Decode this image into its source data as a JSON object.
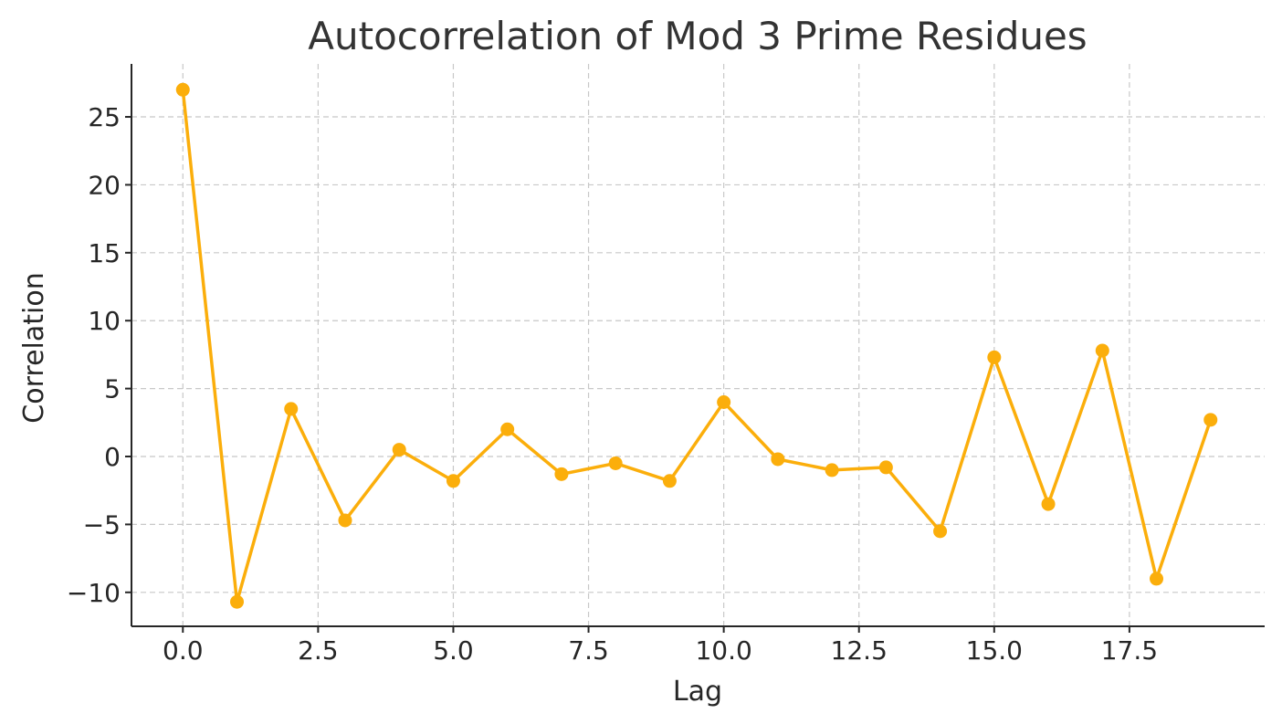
{
  "chart_data": {
    "type": "line",
    "title": "Autocorrelation of Mod 3 Prime Residues",
    "xlabel": "Lag",
    "ylabel": "Correlation",
    "xlim": [
      -0.95,
      20.0
    ],
    "ylim": [
      -12.5,
      28.9
    ],
    "xticks": [
      0.0,
      2.5,
      5.0,
      7.5,
      10.0,
      12.5,
      15.0,
      17.5
    ],
    "xtick_labels": [
      "0.0",
      "2.5",
      "5.0",
      "7.5",
      "10.0",
      "12.5",
      "15.0",
      "17.5"
    ],
    "yticks": [
      -10,
      -5,
      0,
      5,
      10,
      15,
      20,
      25
    ],
    "ytick_labels": [
      "−10",
      "−5",
      "0",
      "5",
      "10",
      "15",
      "20",
      "25"
    ],
    "grid": true,
    "series": [
      {
        "color": "#FBAE0B",
        "marker": "circle",
        "x": [
          0,
          1,
          2,
          3,
          4,
          5,
          6,
          7,
          8,
          9,
          10,
          11,
          12,
          13,
          14,
          15,
          16,
          17,
          18,
          19
        ],
        "values": [
          27.0,
          -10.7,
          3.5,
          -4.7,
          0.5,
          -1.8,
          2.0,
          -1.3,
          -0.5,
          -1.8,
          4.0,
          -0.2,
          -1.0,
          -0.8,
          -5.5,
          7.3,
          -3.5,
          7.8,
          -9.0,
          2.7
        ]
      }
    ]
  }
}
